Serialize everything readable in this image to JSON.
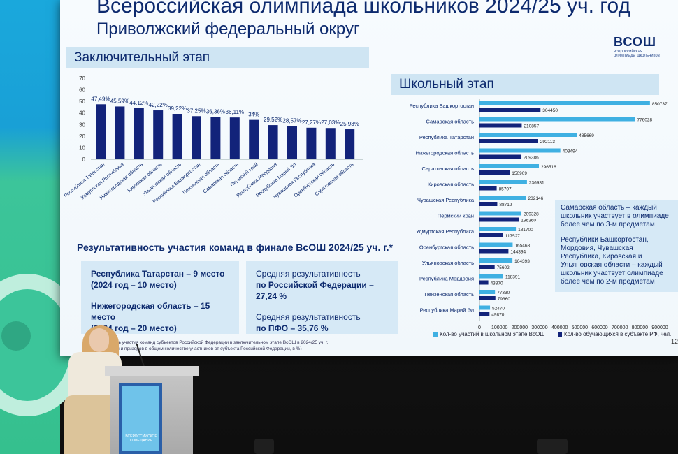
{
  "slide": {
    "title": "Всероссийская олимпиада школьников 2024/25 уч. год",
    "subtitle": "Приволжский федеральный округ",
    "logo": {
      "main": "ВСОШ",
      "sub": "всероссийская олимпиада школьников"
    },
    "final_stage_title": "Заключительный этап",
    "school_stage_title": "Школьный этап",
    "results_title": "Результативность участия команд в финале ВсОШ 2024/25 уч. г.*",
    "box_a": [
      {
        "text": "Республика Татарстан – 9 место"
      },
      {
        "text": "(2024 год – 10 место)"
      },
      {
        "text": "Нижегородская область – 15 место"
      },
      {
        "text": "(2024 год – 20 место)"
      }
    ],
    "box_b": [
      {
        "text": "Средняя результативность"
      },
      {
        "text": "по Российской Федерации – 27,24 %"
      },
      {
        "text": "Средняя результативность"
      },
      {
        "text": "по ПФО – 35,76 %"
      }
    ],
    "footnote_line1": "тивность участия команд субъектов Российской Федерации в заключительном этапе ВсОШ в 2024/25 уч. г.",
    "footnote_line2": "дителей и призеров в общем количестве участников от субъекта Российской Федерации, в %)",
    "note_p1": "Самарская область – каждый школьник участвует в олимпиаде более чем по 3-м предметам",
    "note_p2": "Республики Башкортостан, Мордовия, Чувашская Республика, Кировская и Ульяновская области – каждый школьник участвует олимпиаде более чем по 2-м предметам",
    "legend_1": "Кол-во участий в школьном этапе ВсОШ",
    "legend_2": "Кол-во обучающихся в субъекте РФ, чел.",
    "page_number": "12",
    "podium_label": "ВСЕРОССИЙСКОЕ СОВЕЩАНИЕ"
  },
  "colors": {
    "navy": "#0d2a6e",
    "bar_dark": "#12237a",
    "bar_light": "#3fb0e2"
  },
  "chart_data": [
    {
      "type": "bar",
      "categories": [
        "Республика Татарстан",
        "Удмуртская Республика",
        "Нижегородская область",
        "Кировская область",
        "Ульяновская область",
        "Республика Башкортостан",
        "Пензенская область",
        "Самарская область",
        "Пермский край",
        "Республика Мордовия",
        "Республика Марий Эл",
        "Чувашская Республика",
        "Оренбургская область",
        "Саратовская область"
      ],
      "values": [
        47.49,
        45.59,
        44.12,
        42.22,
        39.22,
        37.25,
        36.36,
        36.11,
        34,
        29.52,
        28.57,
        27.27,
        27.03,
        25.93
      ],
      "value_labels": [
        "47,49%",
        "45,59%",
        "44,12%",
        "42,22%",
        "39,22%",
        "37,25%",
        "36,36%",
        "36,11%",
        "34%",
        "29,52%",
        "28,57%",
        "27,27%",
        "27,03%",
        "25,93%"
      ],
      "yticks": [
        "0",
        "10",
        "20",
        "30",
        "40",
        "50",
        "60",
        "70"
      ],
      "ylim": [
        0,
        70
      ]
    },
    {
      "type": "bar",
      "orientation": "horizontal",
      "categories": [
        "Республика Башкортостан",
        "Самарская область",
        "Республика Татарстан",
        "Нижегородская область",
        "Саратовская область",
        "Кировская область",
        "Чувашская Республика",
        "Пермский край",
        "Удмуртская Республика",
        "Оренбургская область",
        "Ульяновская область",
        "Республика Мордовия",
        "Пензенская область",
        "Республика Марий Эл"
      ],
      "series": [
        {
          "name": "Кол-во участий в школьном этапе ВсОШ",
          "values": [
            850737,
            776028,
            485669,
            403494,
            296516,
            236931,
            232146,
            209328,
            181700,
            165468,
            164393,
            118391,
            77330,
            52470
          ]
        },
        {
          "name": "Кол-во обучающихся в субъекте РФ, чел.",
          "values": [
            304450,
            210857,
            292113,
            209386,
            150909,
            85707,
            88719,
            196360,
            117527,
            144394,
            75602,
            43870,
            79360,
            49870
          ]
        }
      ],
      "xticks": [
        "0",
        "100000",
        "200000",
        "300000",
        "400000",
        "500000",
        "600000",
        "700000",
        "800000",
        "900000"
      ],
      "xlim": [
        0,
        900000
      ]
    }
  ]
}
